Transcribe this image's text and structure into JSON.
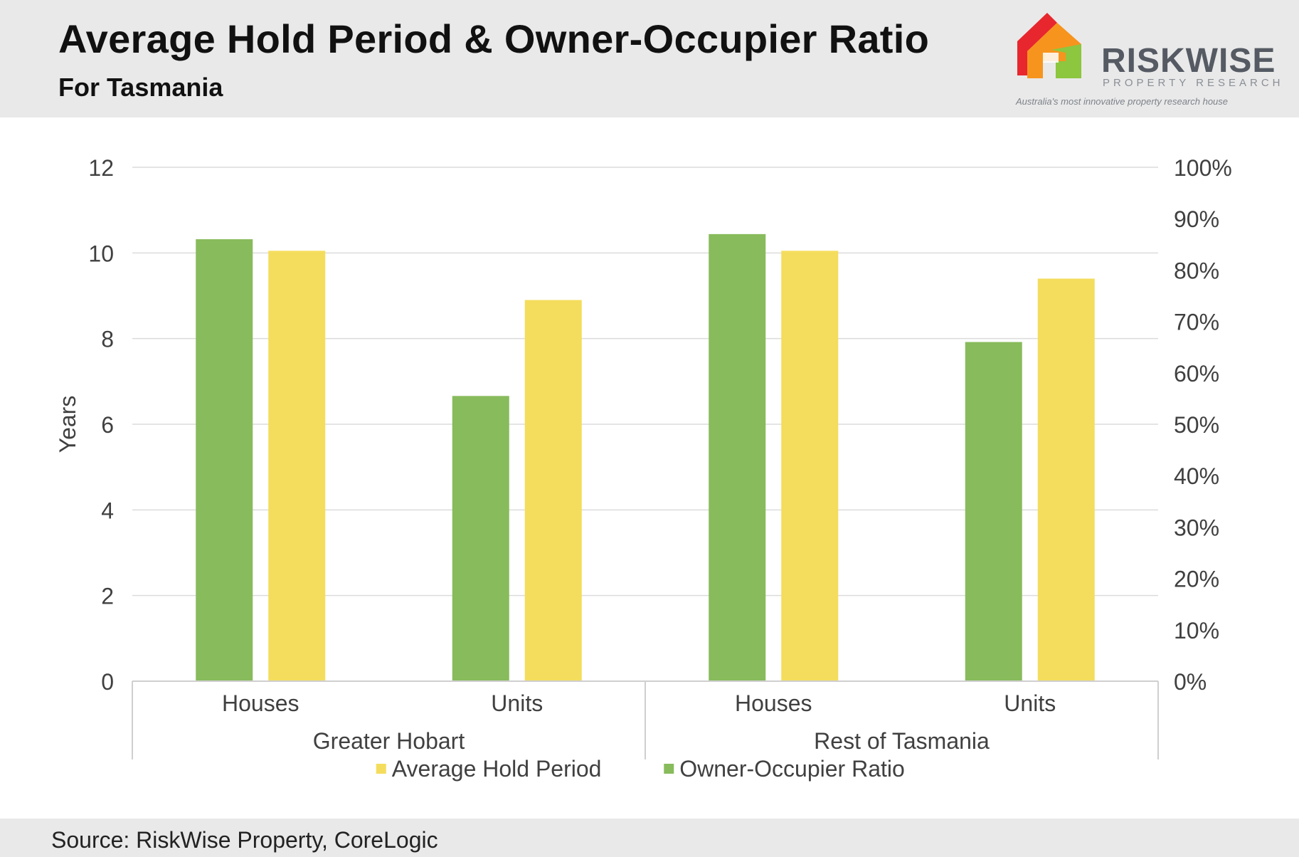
{
  "header": {
    "title": "Average Hold Period & Owner-Occupier Ratio",
    "subtitle": "For Tasmania"
  },
  "logo": {
    "name": "RISKWISE",
    "sub": "PROPERTY RESEARCH",
    "tagline": "Australia's most innovative property research house",
    "colors": [
      "#e8262d",
      "#f7941d",
      "#8dc63f"
    ]
  },
  "footer": {
    "source": "Source: RiskWise Property, CoreLogic"
  },
  "chart_data": {
    "type": "bar",
    "groups": [
      {
        "name": "Greater Hobart",
        "categories": [
          "Houses",
          "Units"
        ]
      },
      {
        "name": "Rest of Tasmania",
        "categories": [
          "Houses",
          "Units"
        ]
      }
    ],
    "categories": [
      "Houses",
      "Units",
      "Houses",
      "Units"
    ],
    "series": [
      {
        "name": "Owner-Occupier Ratio",
        "axis": "right",
        "color": "#88bb5c",
        "values": [
          0.86,
          0.555,
          0.87,
          0.66
        ]
      },
      {
        "name": "Average Hold Period",
        "axis": "left",
        "color": "#f4dd5c",
        "values": [
          10.05,
          8.9,
          10.05,
          9.4
        ]
      }
    ],
    "ylabel": "Years",
    "ylim": [
      0,
      12
    ],
    "yticks": [
      "0",
      "2",
      "4",
      "6",
      "8",
      "10",
      "12"
    ],
    "y2lim": [
      0,
      1
    ],
    "y2ticks": [
      "0%",
      "10%",
      "20%",
      "30%",
      "40%",
      "50%",
      "60%",
      "70%",
      "80%",
      "90%",
      "100%"
    ],
    "legend": {
      "position": "bottom",
      "items": [
        {
          "name": "Average Hold Period",
          "color": "#f4dd5c"
        },
        {
          "name": "Owner-Occupier Ratio",
          "color": "#88bb5c"
        }
      ]
    },
    "grid": true
  }
}
